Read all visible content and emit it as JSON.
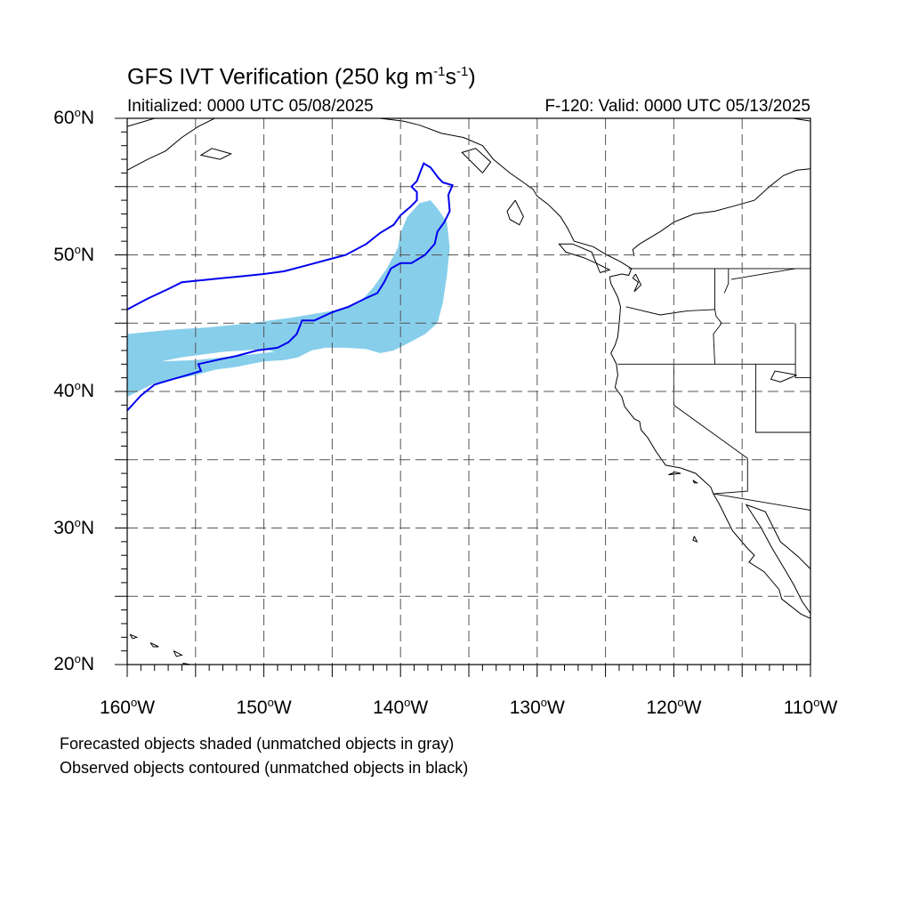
{
  "title": {
    "text": "GFS IVT Verification (250 kg m",
    "sup1": "-1",
    "mid": "s",
    "sup2": "-1",
    "end": ")"
  },
  "init_label": "Initialized: 0000 UTC 05/08/2025",
  "valid_label": "F-120: Valid: 0000 UTC 05/13/2025",
  "lat_labels": [
    {
      "lat": 60,
      "num": "60",
      "deg": "o",
      "hemi": "N"
    },
    {
      "lat": 50,
      "num": "50",
      "deg": "o",
      "hemi": "N"
    },
    {
      "lat": 40,
      "num": "40",
      "deg": "o",
      "hemi": "N"
    },
    {
      "lat": 30,
      "num": "30",
      "deg": "o",
      "hemi": "N"
    },
    {
      "lat": 20,
      "num": "20",
      "deg": "o",
      "hemi": "N"
    }
  ],
  "lon_labels": [
    {
      "lon": -160,
      "num": "160",
      "deg": "o",
      "hemi": "W"
    },
    {
      "lon": -150,
      "num": "150",
      "deg": "o",
      "hemi": "W"
    },
    {
      "lon": -140,
      "num": "140",
      "deg": "o",
      "hemi": "W"
    },
    {
      "lon": -130,
      "num": "130",
      "deg": "o",
      "hemi": "W"
    },
    {
      "lon": -120,
      "num": "120",
      "deg": "o",
      "hemi": "W"
    },
    {
      "lon": -110,
      "num": "110",
      "deg": "o",
      "hemi": "W"
    }
  ],
  "notes": {
    "line1": "Forecasted objects shaded (unmatched objects in gray)",
    "line2": "Observed objects contoured (unmatched objects in black)"
  },
  "colors": {
    "forecast_fill": "#87ceeb",
    "observed_contour": "#0000ee",
    "coastline": "#000000",
    "grid": "#555555"
  },
  "map_extent": {
    "lon_min": -160,
    "lon_max": -110,
    "lat_min": 20,
    "lat_max": 60
  },
  "grid_spacing_deg": 5,
  "forecast_object": [
    [
      -160,
      44.2
    ],
    [
      -157,
      44.5
    ],
    [
      -154,
      44.7
    ],
    [
      -151,
      45.0
    ],
    [
      -148,
      45.4
    ],
    [
      -145,
      45.9
    ],
    [
      -143,
      46.5
    ],
    [
      -142,
      47.6
    ],
    [
      -141,
      49.0
    ],
    [
      -140.2,
      50.5
    ],
    [
      -140,
      51.6
    ],
    [
      -139.5,
      52.8
    ],
    [
      -138.6,
      53.8
    ],
    [
      -137.8,
      54.0
    ],
    [
      -137.3,
      53.4
    ],
    [
      -136.6,
      52.4
    ],
    [
      -136.4,
      50.5
    ],
    [
      -136.6,
      48.5
    ],
    [
      -136.9,
      46.5
    ],
    [
      -137.3,
      45.0
    ],
    [
      -138.2,
      44.2
    ],
    [
      -139.5,
      43.5
    ],
    [
      -140.5,
      43.0
    ],
    [
      -141.5,
      42.8
    ],
    [
      -142.5,
      43.1
    ],
    [
      -144,
      43.2
    ],
    [
      -145.5,
      43.2
    ],
    [
      -146.5,
      43.0
    ],
    [
      -147.5,
      42.5
    ],
    [
      -148.5,
      42.3
    ],
    [
      -150,
      42.2
    ],
    [
      -152,
      41.8
    ],
    [
      -153.5,
      41.6
    ],
    [
      -155,
      41.2
    ],
    [
      -156.5,
      40.9
    ],
    [
      -158,
      40.6
    ],
    [
      -160,
      39.6
    ]
  ],
  "forecast_hole": [
    [
      -157.5,
      42.2
    ],
    [
      -155,
      42.3
    ],
    [
      -152,
      42.6
    ],
    [
      -149.2,
      42.9
    ],
    [
      -150,
      43.1
    ],
    [
      -153,
      42.9
    ],
    [
      -156,
      42.5
    ],
    [
      -157.5,
      42.2
    ]
  ],
  "observed_contour": [
    [
      -160,
      46.0
    ],
    [
      -158.5,
      46.8
    ],
    [
      -157,
      47.5
    ],
    [
      -156,
      48.0
    ],
    [
      -154,
      48.2
    ],
    [
      -152,
      48.4
    ],
    [
      -150,
      48.6
    ],
    [
      -148.5,
      48.8
    ],
    [
      -147,
      49.2
    ],
    [
      -145.5,
      49.6
    ],
    [
      -144,
      50.0
    ],
    [
      -142.5,
      50.8
    ],
    [
      -141.5,
      51.6
    ],
    [
      -140.5,
      52.2
    ],
    [
      -140,
      52.9
    ],
    [
      -139.3,
      53.5
    ],
    [
      -138.8,
      54.0
    ],
    [
      -138.8,
      54.6
    ],
    [
      -139.2,
      55.0
    ],
    [
      -138.8,
      55.4
    ],
    [
      -138.5,
      56.2
    ],
    [
      -138.3,
      56.7
    ],
    [
      -137.8,
      56.4
    ],
    [
      -137.2,
      55.6
    ],
    [
      -136.9,
      55.3
    ],
    [
      -136.2,
      55.1
    ],
    [
      -136.5,
      54.4
    ],
    [
      -136.4,
      53.2
    ],
    [
      -136.8,
      52.4
    ],
    [
      -137.3,
      51.7
    ],
    [
      -137.5,
      50.8
    ],
    [
      -138.2,
      50.0
    ],
    [
      -139.2,
      49.4
    ],
    [
      -140,
      49.4
    ],
    [
      -140.7,
      49.0
    ],
    [
      -141.2,
      48.0
    ],
    [
      -141.7,
      47.2
    ],
    [
      -142.6,
      46.8
    ],
    [
      -143.8,
      46.2
    ],
    [
      -145,
      45.8
    ],
    [
      -146.3,
      45.2
    ],
    [
      -147.2,
      45.2
    ],
    [
      -147.6,
      44.2
    ],
    [
      -148.2,
      43.6
    ],
    [
      -149,
      43.2
    ],
    [
      -150.5,
      43.0
    ],
    [
      -152,
      42.6
    ],
    [
      -153,
      42.4
    ],
    [
      -154.8,
      42.0
    ],
    [
      -154.6,
      41.5
    ],
    [
      -155.6,
      41.2
    ],
    [
      -157,
      40.8
    ],
    [
      -158,
      40.5
    ],
    [
      -159,
      39.7
    ],
    [
      -160,
      38.6
    ]
  ],
  "state_borders": [
    [
      [
        -124.1,
        42
      ],
      [
        -120,
        42
      ],
      [
        -117,
        42
      ],
      [
        -111.1,
        42
      ]
    ],
    [
      [
        -120,
        42
      ],
      [
        -120,
        39
      ],
      [
        -114.6,
        35.1
      ]
    ],
    [
      [
        -117,
        49
      ],
      [
        -117,
        46
      ],
      [
        -116.9,
        45.5
      ],
      [
        -116.5,
        45.0
      ],
      [
        -117.1,
        44.2
      ],
      [
        -117,
        42
      ]
    ],
    [
      [
        -123.5,
        46.2
      ],
      [
        -121,
        45.6
      ],
      [
        -119,
        45.9
      ],
      [
        -117,
        46
      ]
    ],
    [
      [
        -114.6,
        35.1
      ],
      [
        -114.6,
        32.7
      ],
      [
        -117.1,
        32.5
      ]
    ],
    [
      [
        -114.0,
        42
      ],
      [
        -114.0,
        37
      ],
      [
        -109,
        37
      ]
    ],
    [
      [
        -116,
        49
      ],
      [
        -116,
        48
      ],
      [
        -116,
        47.9
      ],
      [
        -116.3,
        47.2
      ]
    ],
    [
      [
        -115.8,
        48.2
      ],
      [
        -111.1,
        49
      ]
    ],
    [
      [
        -123.3,
        49
      ],
      [
        -110,
        49
      ]
    ],
    [
      [
        -111.1,
        45
      ],
      [
        -111.1,
        41
      ],
      [
        -110,
        41
      ]
    ],
    [
      [
        -117.1,
        32.5
      ],
      [
        -110,
        31.3
      ]
    ]
  ],
  "coastlines": [
    [
      [
        -124.7,
        48.4
      ],
      [
        -124.6,
        47.9
      ],
      [
        -124.1,
        46.9
      ],
      [
        -123.9,
        46.2
      ],
      [
        -124.0,
        45.0
      ],
      [
        -124.1,
        44.0
      ],
      [
        -124.3,
        43.4
      ],
      [
        -124.6,
        42.8
      ],
      [
        -124.2,
        42.0
      ],
      [
        -124.1,
        41.2
      ],
      [
        -124.3,
        40.3
      ],
      [
        -123.8,
        39.6
      ],
      [
        -123.6,
        38.9
      ],
      [
        -122.9,
        38.0
      ],
      [
        -122.5,
        37.8
      ],
      [
        -122.4,
        37.2
      ],
      [
        -121.9,
        36.6
      ],
      [
        -121.3,
        35.6
      ],
      [
        -120.6,
        34.6
      ],
      [
        -119.5,
        34.4
      ],
      [
        -118.4,
        34.0
      ],
      [
        -117.3,
        33.0
      ],
      [
        -117.1,
        32.5
      ],
      [
        -116.7,
        31.8
      ],
      [
        -116.0,
        30.4
      ],
      [
        -115.7,
        29.8
      ],
      [
        -114.6,
        28.5
      ],
      [
        -114.1,
        28.0
      ],
      [
        -114.5,
        27.5
      ],
      [
        -113.4,
        26.8
      ],
      [
        -112.3,
        25.5
      ],
      [
        -112.1,
        24.8
      ],
      [
        -110.7,
        23.7
      ],
      [
        -109.4,
        23.1
      ],
      [
        -109.9,
        23.6
      ],
      [
        -110.6,
        24.6
      ],
      [
        -111.2,
        25.8
      ],
      [
        -111.9,
        27.0
      ],
      [
        -112.8,
        28.5
      ],
      [
        -113.6,
        30.0
      ],
      [
        -114.7,
        31.7
      ],
      [
        -113.3,
        31.2
      ],
      [
        -112.2,
        29.0
      ],
      [
        -110.9,
        27.9
      ],
      [
        -110.0,
        27.0
      ],
      [
        -109.2,
        25.7
      ],
      [
        -108.3,
        25.2
      ],
      [
        -106.4,
        23.2
      ]
    ],
    [
      [
        -122.8,
        48.6
      ],
      [
        -122.4,
        47.8
      ],
      [
        -122.9,
        47.3
      ],
      [
        -122.6,
        48.0
      ],
      [
        -123.0,
        48.3
      ],
      [
        -122.8,
        48.6
      ]
    ],
    [
      [
        -124.7,
        48.4
      ],
      [
        -123.8,
        48.6
      ],
      [
        -123.3,
        48.5
      ],
      [
        -123.1,
        49.0
      ],
      [
        -123.9,
        49.5
      ],
      [
        -124.9,
        50.0
      ],
      [
        -125.9,
        50.6
      ],
      [
        -127.3,
        51.0
      ],
      [
        -127.8,
        52.0
      ],
      [
        -128.3,
        52.8
      ],
      [
        -129.2,
        53.7
      ],
      [
        -130.0,
        54.3
      ],
      [
        -130.3,
        54.8
      ],
      [
        -131.0,
        55.3
      ],
      [
        -132.0,
        56.0
      ],
      [
        -133.2,
        57.0
      ],
      [
        -134.0,
        58.0
      ],
      [
        -135.4,
        58.6
      ],
      [
        -137.0,
        58.9
      ],
      [
        -138.6,
        59.5
      ],
      [
        -139.8,
        59.8
      ],
      [
        -141.5,
        60.0
      ]
    ],
    [
      [
        -131.6,
        54.0
      ],
      [
        -132.2,
        53.2
      ],
      [
        -132.0,
        52.6
      ],
      [
        -131.3,
        52.2
      ],
      [
        -131.0,
        52.8
      ],
      [
        -131.6,
        54.0
      ]
    ],
    [
      [
        -125.4,
        48.7
      ],
      [
        -124.7,
        48.9
      ],
      [
        -125.7,
        49.4
      ],
      [
        -126.6,
        49.8
      ],
      [
        -127.9,
        50.2
      ],
      [
        -128.4,
        50.8
      ],
      [
        -127.4,
        50.8
      ],
      [
        -126.0,
        50.2
      ],
      [
        -125.4,
        48.7
      ]
    ],
    [
      [
        -134.0,
        56.0
      ],
      [
        -133.4,
        56.8
      ],
      [
        -134.5,
        57.8
      ],
      [
        -135.5,
        57.5
      ],
      [
        -134.0,
        56.0
      ]
    ],
    [
      [
        -160,
        59.4
      ],
      [
        -159,
        59.7
      ],
      [
        -158,
        60.0
      ]
    ],
    [
      [
        -160,
        56.2
      ],
      [
        -158.5,
        57.0
      ],
      [
        -157.2,
        57.6
      ],
      [
        -156.0,
        58.6
      ],
      [
        -154.8,
        59.4
      ],
      [
        -153.6,
        60.0
      ]
    ],
    [
      [
        -153.8,
        57.8
      ],
      [
        -152.4,
        57.4
      ],
      [
        -153.2,
        57.0
      ],
      [
        -154.6,
        57.3
      ],
      [
        -153.8,
        57.8
      ]
    ],
    [
      [
        -155.4,
        20.0
      ],
      [
        -154.8,
        19.5
      ],
      [
        -155.9,
        19.1
      ],
      [
        -155.9,
        20.1
      ],
      [
        -155.4,
        20.0
      ]
    ],
    [
      [
        -156.6,
        21.0
      ],
      [
        -156.0,
        20.7
      ],
      [
        -156.4,
        20.6
      ],
      [
        -156.6,
        21.0
      ]
    ],
    [
      [
        -158.3,
        21.6
      ],
      [
        -157.7,
        21.3
      ],
      [
        -158.1,
        21.3
      ],
      [
        -158.3,
        21.6
      ]
    ],
    [
      [
        -159.8,
        22.2
      ],
      [
        -159.3,
        22.0
      ],
      [
        -159.6,
        21.9
      ],
      [
        -159.8,
        22.2
      ]
    ],
    [
      [
        -111.3,
        60
      ],
      [
        -110,
        59.8
      ]
    ],
    [
      [
        -111,
        41.2
      ],
      [
        -112.6,
        41.5
      ],
      [
        -112.9,
        40.9
      ],
      [
        -112.2,
        40.7
      ],
      [
        -111,
        41.2
      ]
    ],
    [
      [
        -118.5,
        29.4
      ],
      [
        -118.3,
        29.0
      ],
      [
        -118.6,
        29.1
      ],
      [
        -118.5,
        29.4
      ]
    ],
    [
      [
        -120.4,
        33.9
      ],
      [
        -119.5,
        34.0
      ],
      [
        -119.9,
        34.1
      ],
      [
        -120.4,
        33.9
      ]
    ],
    [
      [
        -118.6,
        33.5
      ],
      [
        -118.3,
        33.3
      ],
      [
        -118.5,
        33.3
      ],
      [
        -118.6,
        33.5
      ]
    ],
    [
      [
        -122.9,
        49.9
      ],
      [
        -123.0,
        50.4
      ],
      [
        -122.5,
        50.8
      ],
      [
        -121.0,
        51.7
      ],
      [
        -120.0,
        52.4
      ],
      [
        -118.5,
        53.0
      ],
      [
        -117.0,
        53.2
      ],
      [
        -115.5,
        53.6
      ],
      [
        -114.1,
        54.0
      ],
      [
        -113.0,
        55.0
      ],
      [
        -112.0,
        55.8
      ],
      [
        -111.0,
        56.2
      ],
      [
        -110,
        56.3
      ]
    ]
  ]
}
